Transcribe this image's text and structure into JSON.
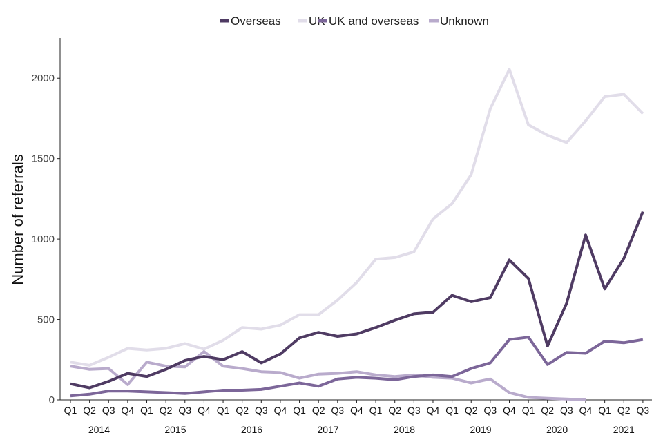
{
  "chart_data": {
    "type": "line",
    "title": "",
    "xlabel": "",
    "ylabel": "Number of referrals",
    "ylim": [
      0,
      2250
    ],
    "yticks": [
      0,
      500,
      1000,
      1500,
      2000
    ],
    "quarters": [
      "Q1",
      "Q2",
      "Q3",
      "Q4",
      "Q1",
      "Q2",
      "Q3",
      "Q4",
      "Q1",
      "Q2",
      "Q3",
      "Q4",
      "Q1",
      "Q2",
      "Q3",
      "Q4",
      "Q1",
      "Q2",
      "Q3",
      "Q4",
      "Q1",
      "Q2",
      "Q3",
      "Q4",
      "Q1",
      "Q2",
      "Q3",
      "Q4",
      "Q1",
      "Q2",
      "Q3"
    ],
    "years": [
      {
        "label": "2014",
        "start": 0,
        "end": 3
      },
      {
        "label": "2015",
        "start": 4,
        "end": 7
      },
      {
        "label": "2016",
        "start": 8,
        "end": 11
      },
      {
        "label": "2017",
        "start": 12,
        "end": 15
      },
      {
        "label": "2018",
        "start": 16,
        "end": 19
      },
      {
        "label": "2019",
        "start": 20,
        "end": 23
      },
      {
        "label": "2020",
        "start": 24,
        "end": 27
      },
      {
        "label": "2021",
        "start": 28,
        "end": 30
      }
    ],
    "legend_position": "top",
    "series": [
      {
        "name": "Overseas",
        "color": "#4f3b63",
        "values": [
          100,
          75,
          115,
          165,
          145,
          190,
          245,
          270,
          250,
          300,
          230,
          285,
          385,
          420,
          395,
          410,
          450,
          495,
          535,
          545,
          650,
          610,
          635,
          870,
          755,
          335,
          600,
          1025,
          690,
          880,
          1170
        ]
      },
      {
        "name": "UK",
        "color": "#e1dde9",
        "values": [
          235,
          215,
          265,
          320,
          310,
          320,
          350,
          315,
          370,
          450,
          440,
          465,
          530,
          530,
          620,
          730,
          875,
          885,
          920,
          1125,
          1220,
          1400,
          1810,
          2055,
          1710,
          1645,
          1600,
          1735,
          1885,
          1900,
          1780
        ]
      },
      {
        "name": "UK and overseas",
        "color": "#7c6699",
        "values": [
          25,
          35,
          55,
          55,
          50,
          45,
          40,
          50,
          60,
          60,
          65,
          85,
          105,
          85,
          130,
          140,
          135,
          125,
          145,
          155,
          145,
          195,
          230,
          375,
          390,
          220,
          295,
          290,
          365,
          355,
          375
        ]
      },
      {
        "name": "Unknown",
        "color": "#b9abcc",
        "values": [
          210,
          190,
          195,
          95,
          235,
          210,
          205,
          300,
          210,
          195,
          175,
          170,
          135,
          160,
          165,
          175,
          155,
          145,
          155,
          140,
          135,
          105,
          130,
          45,
          15,
          10,
          5,
          0,
          null,
          null,
          null
        ]
      }
    ]
  }
}
